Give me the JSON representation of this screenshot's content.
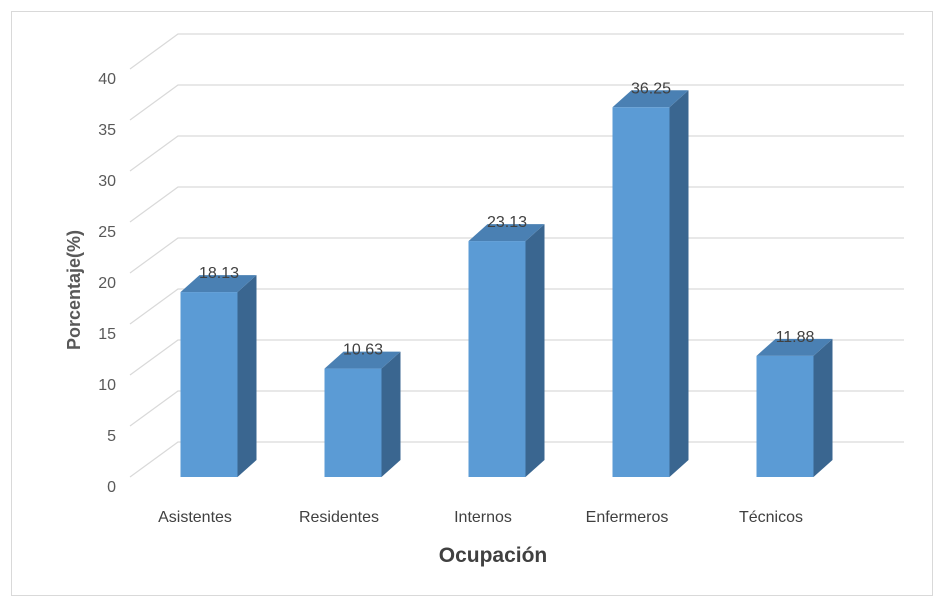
{
  "chart_data": {
    "type": "bar",
    "style": "3d-column",
    "title": "",
    "xlabel": "Ocupación",
    "ylabel": "Porcentaje(%)",
    "categories": [
      "Asistentes",
      "Residentes",
      "Internos",
      "Enfermeros",
      "Técnicos"
    ],
    "values": [
      18.13,
      10.63,
      23.13,
      36.25,
      11.88
    ],
    "data_labels": [
      "18.13",
      "10.63",
      "23.13",
      "36.25",
      "11.88"
    ],
    "ylim": [
      0,
      40
    ],
    "y_ticks": [
      "0",
      "5",
      "10",
      "15",
      "20",
      "25",
      "30",
      "35",
      "40"
    ],
    "grid": true,
    "legend": "none",
    "colors": {
      "bar_front": "#5b9bd5",
      "bar_side": "#3a6690",
      "bar_top": "#4a80b3",
      "gridline": "#d9d9d9"
    }
  }
}
